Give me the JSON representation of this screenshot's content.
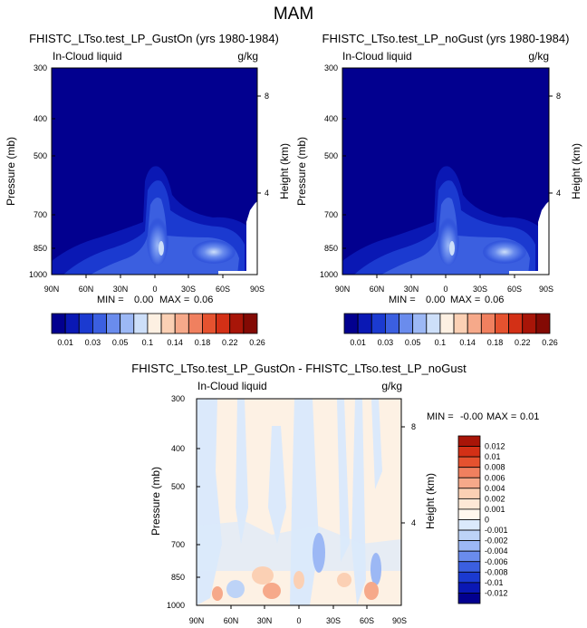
{
  "main_title": "MAM",
  "chart_data": [
    {
      "type": "heatmap",
      "title": "FHISTC_LTso.test_LP_GustOn (yrs 1980-1984)",
      "left_label": "In-Cloud liquid",
      "right_label": "g/kg",
      "xlabel": "",
      "ylabel": "Pressure (mb)",
      "ylabel_right": "Height (km)",
      "x_ticks": [
        "90N",
        "60N",
        "30N",
        "0",
        "30S",
        "60S",
        "90S"
      ],
      "y_ticks": [
        "300",
        "400",
        "500",
        "700",
        "850",
        "1000"
      ],
      "height_ticks": [
        "8",
        "4"
      ],
      "ylim": [
        1000,
        300
      ],
      "xlim": [
        90,
        -90
      ],
      "stats": {
        "min_label": "MIN =",
        "min_value": "0.00",
        "max_label": "MAX =",
        "max_value": "0.06"
      }
    },
    {
      "type": "heatmap",
      "title": "FHISTC_LTso.test_LP_noGust (yrs 1980-1984)",
      "left_label": "In-Cloud liquid",
      "right_label": "g/kg",
      "xlabel": "",
      "ylabel": "Pressure (mb)",
      "ylabel_right": "Height (km)",
      "x_ticks": [
        "90N",
        "60N",
        "30N",
        "0",
        "30S",
        "60S",
        "90S"
      ],
      "y_ticks": [
        "300",
        "400",
        "500",
        "700",
        "850",
        "1000"
      ],
      "height_ticks": [
        "8",
        "4"
      ],
      "ylim": [
        1000,
        300
      ],
      "xlim": [
        90,
        -90
      ],
      "stats": {
        "min_label": "MIN =",
        "min_value": "0.00",
        "max_label": "MAX =",
        "max_value": "0.06"
      }
    },
    {
      "type": "heatmap",
      "title": "FHISTC_LTso.test_LP_GustOn - FHISTC_LTso.test_LP_noGust",
      "left_label": "In-Cloud liquid",
      "right_label": "g/kg",
      "xlabel": "",
      "ylabel": "Pressure (mb)",
      "ylabel_right": "Height (km)",
      "x_ticks": [
        "90N",
        "60N",
        "30N",
        "0",
        "30S",
        "60S",
        "90S"
      ],
      "y_ticks": [
        "300",
        "400",
        "500",
        "700",
        "850",
        "1000"
      ],
      "height_ticks": [
        "8",
        "4"
      ],
      "ylim": [
        1000,
        300
      ],
      "xlim": [
        90,
        -90
      ],
      "stats": {
        "min_label": "MIN =",
        "min_value": "-0.00",
        "max_label": "MAX =",
        "max_value": "0.01"
      }
    }
  ],
  "colorbar_top": {
    "labels": [
      "0.01",
      "0.03",
      "0.05",
      "0.1",
      "0.14",
      "0.18",
      "0.22",
      "0.26"
    ],
    "colors": [
      "#02008f",
      "#0a18b4",
      "#1b3ad0",
      "#3b5fe0",
      "#6a8ced",
      "#9cb8f5",
      "#cddff9",
      "#fdf0e2",
      "#fbd0b4",
      "#f6a98a",
      "#f0805f",
      "#e5522f",
      "#d33016",
      "#a81508",
      "#830a04"
    ]
  },
  "colorbar_diff": {
    "labels": [
      "0.012",
      "0.01",
      "0.008",
      "0.006",
      "0.004",
      "0.002",
      "0.001",
      "0",
      "-0.001",
      "-0.002",
      "-0.004",
      "-0.006",
      "-0.008",
      "-0.01",
      "-0.012"
    ],
    "colors": [
      "#a81508",
      "#d33016",
      "#e5522f",
      "#f0805f",
      "#f6a98a",
      "#fbd0b4",
      "#fde8d6",
      "#fff7ee",
      "#dbe9fb",
      "#bdd3f7",
      "#9cb8f5",
      "#6a8ced",
      "#3b5fe0",
      "#1b3ad0",
      "#0a18b4",
      "#02008f"
    ]
  }
}
